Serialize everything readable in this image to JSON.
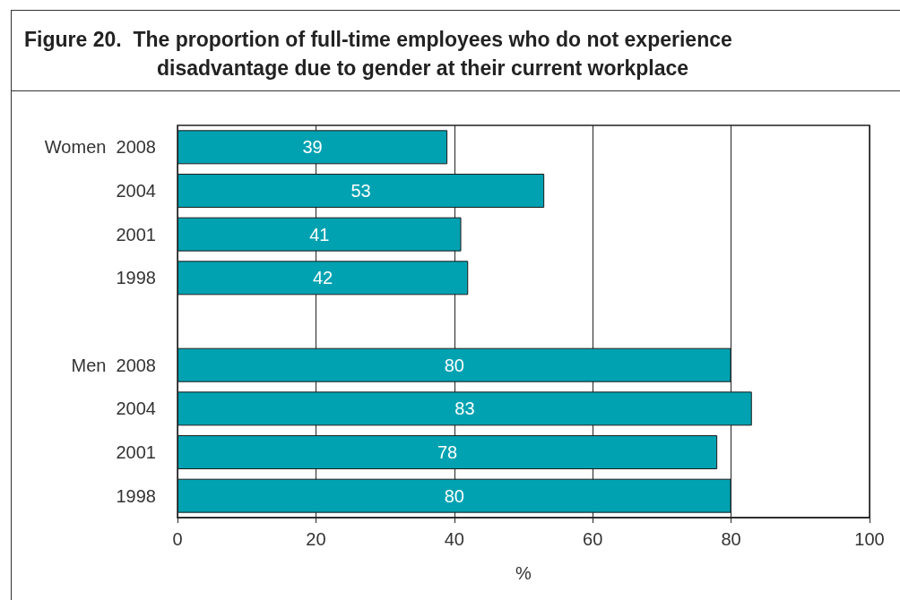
{
  "chart_data": {
    "type": "bar",
    "orientation": "horizontal",
    "title": "Figure 20.  The proportion of full-time employees who do not experience disadvantage due to gender at their current workplace",
    "xlabel": "%",
    "categories": [
      "Women  2008",
      "2004",
      "2001",
      "1998",
      null,
      "Men  2008",
      "2004",
      "2001",
      "1998"
    ],
    "values": [
      39,
      53,
      41,
      42,
      null,
      80,
      83,
      78,
      80
    ],
    "color": "#00a2b1",
    "xlim": [
      0,
      100
    ],
    "xticks": [
      0,
      20,
      40,
      60,
      80,
      100
    ],
    "grid": "x",
    "data_labels": true
  }
}
